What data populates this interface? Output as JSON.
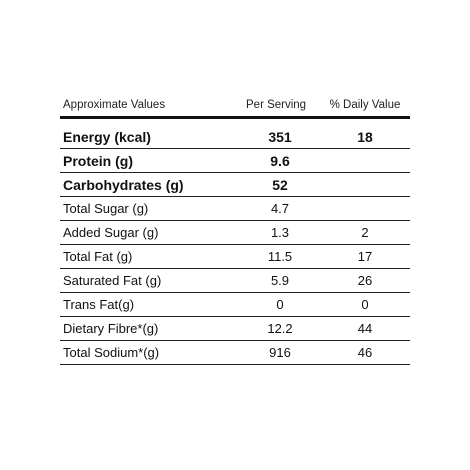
{
  "table": {
    "headers": {
      "name": "Approximate Values",
      "per_serving": "Per Serving",
      "daily_value": "% Daily Value"
    },
    "rows": [
      {
        "name": "Energy (kcal)",
        "per_serving": "351",
        "daily_value": "18",
        "bold": true
      },
      {
        "name": "Protein (g)",
        "per_serving": "9.6",
        "daily_value": "",
        "bold": true
      },
      {
        "name": "Carbohydrates (g)",
        "per_serving": "52",
        "daily_value": "",
        "bold": true
      },
      {
        "name": "Total Sugar (g)",
        "per_serving": "4.7",
        "daily_value": "",
        "bold": false
      },
      {
        "name": "Added Sugar (g)",
        "per_serving": "1.3",
        "daily_value": "2",
        "bold": false
      },
      {
        "name": "Total Fat (g)",
        "per_serving": "11.5",
        "daily_value": "17",
        "bold": false
      },
      {
        "name": "Saturated Fat (g)",
        "per_serving": "5.9",
        "daily_value": "26",
        "bold": false
      },
      {
        "name": "Trans Fat(g)",
        "per_serving": "0",
        "daily_value": "0",
        "bold": false
      },
      {
        "name": "Dietary Fibre*(g)",
        "per_serving": "12.2",
        "daily_value": "44",
        "bold": false
      },
      {
        "name": "Total Sodium*(g)",
        "per_serving": "916",
        "daily_value": "46",
        "bold": false
      }
    ]
  }
}
